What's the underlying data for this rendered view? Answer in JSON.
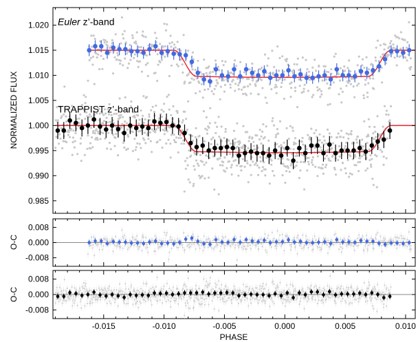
{
  "chart_data": [
    {
      "type": "scatter",
      "panel": "main",
      "ylabel": "NORMALIZED FLUX",
      "xlabel": "",
      "xlim": [
        -0.0192,
        0.0108
      ],
      "ylim": [
        0.9825,
        1.0235
      ],
      "xticks": [
        -0.015,
        -0.01,
        -0.005,
        0.0,
        0.005,
        0.01
      ],
      "xtick_labels": [
        "",
        "",
        "",
        "",
        "",
        ""
      ],
      "yticks": [
        0.985,
        0.99,
        0.995,
        1.0,
        1.005,
        1.01,
        1.015,
        1.02
      ],
      "ytick_labels": [
        "0.985",
        "0.990",
        "0.995",
        "1.000",
        "1.005",
        "1.010",
        "1.015",
        "1.020"
      ],
      "grid": false,
      "legend": "none",
      "annotations": [
        {
          "id": "euler",
          "italic": "Euler",
          "rest": " z’-band",
          "x": -0.0188,
          "y": 1.02
        },
        {
          "id": "trappist",
          "italic": "",
          "rest": "TRAPPIST z’-band",
          "x": -0.0188,
          "y": 1.0026
        }
      ],
      "series": [
        {
          "name": "Euler z’-band",
          "color": "#4169e1",
          "baseline": 1.015,
          "depth": 0.0052,
          "x_range": [
            -0.0163,
            0.0105
          ],
          "binned_x": [
            -0.0162,
            -0.0157,
            -0.0152,
            -0.0147,
            -0.0142,
            -0.0137,
            -0.0132,
            -0.0127,
            -0.0122,
            -0.0117,
            -0.0112,
            -0.0107,
            -0.0102,
            -0.0097,
            -0.0092,
            -0.0087,
            -0.0082,
            -0.0077,
            -0.0072,
            -0.0067,
            -0.0062,
            -0.0057,
            -0.0052,
            -0.0047,
            -0.0042,
            -0.0037,
            -0.0032,
            -0.0027,
            -0.0022,
            -0.0017,
            -0.0012,
            -0.0007,
            -0.0002,
            0.0003,
            0.0008,
            0.0013,
            0.0018,
            0.0023,
            0.0028,
            0.0033,
            0.0038,
            0.0043,
            0.0048,
            0.0053,
            0.0058,
            0.0063,
            0.0068,
            0.0073,
            0.0078,
            0.0083,
            0.0088,
            0.0093,
            0.0098,
            0.0103
          ],
          "binned_y": [
            1.015,
            1.0158,
            1.0158,
            1.0145,
            1.0155,
            1.0152,
            1.0152,
            1.0148,
            1.0148,
            1.0145,
            1.0152,
            1.0158,
            1.0145,
            1.0148,
            1.0143,
            1.0142,
            1.014,
            1.0127,
            1.0105,
            1.0092,
            1.0088,
            1.0112,
            1.01,
            1.0098,
            1.0112,
            1.0098,
            1.0112,
            1.0105,
            1.01,
            1.0108,
            1.0095,
            1.01,
            1.01,
            1.011,
            1.0098,
            1.0102,
            1.0095,
            1.0095,
            1.0098,
            1.01,
            1.0092,
            1.0112,
            1.01,
            1.01,
            1.0098,
            1.0108,
            1.0105,
            1.011,
            1.0118,
            1.0132,
            1.0148,
            1.0148,
            1.0145,
            1.015
          ],
          "error": 0.0012,
          "residual_ylim": [
            -0.0125,
            0.0125
          ],
          "residual_ticks": [
            -0.008,
            0.0,
            0.008
          ],
          "residual_tick_labels": [
            "-0.008",
            "0.000",
            "0.008"
          ]
        },
        {
          "name": "TRAPPIST z’-band",
          "color": "#000000",
          "baseline": 1.0,
          "depth": 0.0052,
          "x_range": [
            -0.019,
            0.0088
          ],
          "binned_x": [
            -0.0188,
            -0.0183,
            -0.0178,
            -0.0173,
            -0.0168,
            -0.0163,
            -0.0158,
            -0.0153,
            -0.0148,
            -0.0143,
            -0.0138,
            -0.0133,
            -0.0128,
            -0.0123,
            -0.0118,
            -0.0113,
            -0.0108,
            -0.0103,
            -0.0098,
            -0.0093,
            -0.0088,
            -0.0083,
            -0.0078,
            -0.0073,
            -0.0068,
            -0.0063,
            -0.0058,
            -0.0053,
            -0.0048,
            -0.0043,
            -0.0038,
            -0.0033,
            -0.0028,
            -0.0023,
            -0.0018,
            -0.0013,
            -0.0008,
            -0.0003,
            0.0002,
            0.0007,
            0.0012,
            0.0017,
            0.0022,
            0.0027,
            0.0032,
            0.0037,
            0.0042,
            0.0047,
            0.0052,
            0.0057,
            0.0062,
            0.0067,
            0.0072,
            0.0077,
            0.0082,
            0.0087
          ],
          "binned_y": [
            0.999,
            0.999,
            1.001,
            1.0005,
            0.9995,
            1.0,
            1.0012,
            0.9998,
            0.9992,
            1.0,
            0.9993,
            0.9985,
            1.0,
            0.9995,
            0.9998,
            0.9995,
            1.0008,
            1.0005,
            1.0007,
            1.0,
            0.9998,
            0.9985,
            0.9965,
            0.9957,
            0.996,
            0.995,
            0.9955,
            0.9955,
            0.9957,
            0.9955,
            0.994,
            0.9945,
            0.9948,
            0.9945,
            0.9945,
            0.994,
            0.995,
            0.994,
            0.9955,
            0.993,
            0.9955,
            0.9945,
            0.996,
            0.996,
            0.9945,
            0.9962,
            0.9945,
            0.995,
            0.995,
            0.995,
            0.9955,
            0.9948,
            0.996,
            0.9968,
            0.9972,
            0.999
          ],
          "error": 0.0017,
          "residual_ylim": [
            -0.0125,
            0.0125
          ],
          "residual_ticks": [
            -0.008,
            0.0,
            0.008
          ],
          "residual_tick_labels": [
            "-0.008",
            "0.000",
            "0.008"
          ]
        }
      ],
      "model": {
        "color": "#e8202a",
        "t1": -0.0092,
        "t2": -0.0073,
        "t3": 0.0069,
        "t4": 0.0088
      },
      "raw_points_color": "#c8c8c8"
    },
    {
      "type": "scatter",
      "panel": "residual-euler",
      "ylabel": "O-C",
      "xlabel": "",
      "ylim": [
        -0.0125,
        0.0125
      ],
      "yticks": [
        -0.008,
        0.0,
        0.008
      ],
      "ytick_labels": [
        "-0.008",
        "0.000",
        "0.008"
      ],
      "series_ref": "Euler z’-band"
    },
    {
      "type": "scatter",
      "panel": "residual-trappist",
      "ylabel": "O-C",
      "xlabel": "PHASE",
      "ylim": [
        -0.0125,
        0.0125
      ],
      "yticks": [
        -0.008,
        0.0,
        0.008
      ],
      "ytick_labels": [
        "-0.008",
        "0.000",
        "0.008"
      ],
      "xticks": [
        -0.015,
        -0.01,
        -0.005,
        0.0,
        0.005,
        0.01
      ],
      "xtick_labels": [
        "-0.015",
        "-0.010",
        "-0.005",
        "0.000",
        "0.005",
        "0.010"
      ],
      "series_ref": "TRAPPIST z’-band"
    }
  ]
}
